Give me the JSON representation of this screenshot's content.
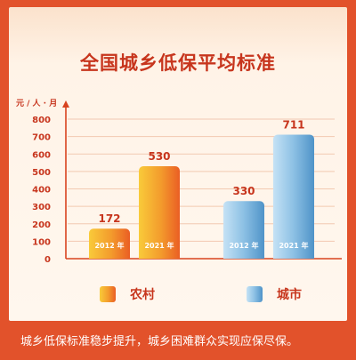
{
  "chart_data": {
    "type": "bar",
    "title": "全国城乡低保平均标准",
    "ylabel": "元 / 人 · 月",
    "ylim": [
      0,
      800
    ],
    "yticks": [
      0,
      100,
      200,
      300,
      400,
      500,
      600,
      700,
      800
    ],
    "grid": true,
    "legend_position": "bottom",
    "categories": [
      "2012 年",
      "2021 年"
    ],
    "series": [
      {
        "name": "农村",
        "values": [
          172,
          530
        ],
        "color": "#f08a28"
      },
      {
        "name": "城市",
        "values": [
          330,
          711
        ],
        "color": "#7fb7de"
      }
    ]
  },
  "caption": "城乡低保标准稳步提升，城乡困难群众实现应保尽保。",
  "colors": {
    "page_background": "#e2522b",
    "title": "#c7351d",
    "rural_bar_light": "#f9cb3a",
    "rural_bar_dark": "#ea5e24",
    "urban_bar_light": "#c5e2f5",
    "urban_bar_dark": "#4f93c8"
  }
}
